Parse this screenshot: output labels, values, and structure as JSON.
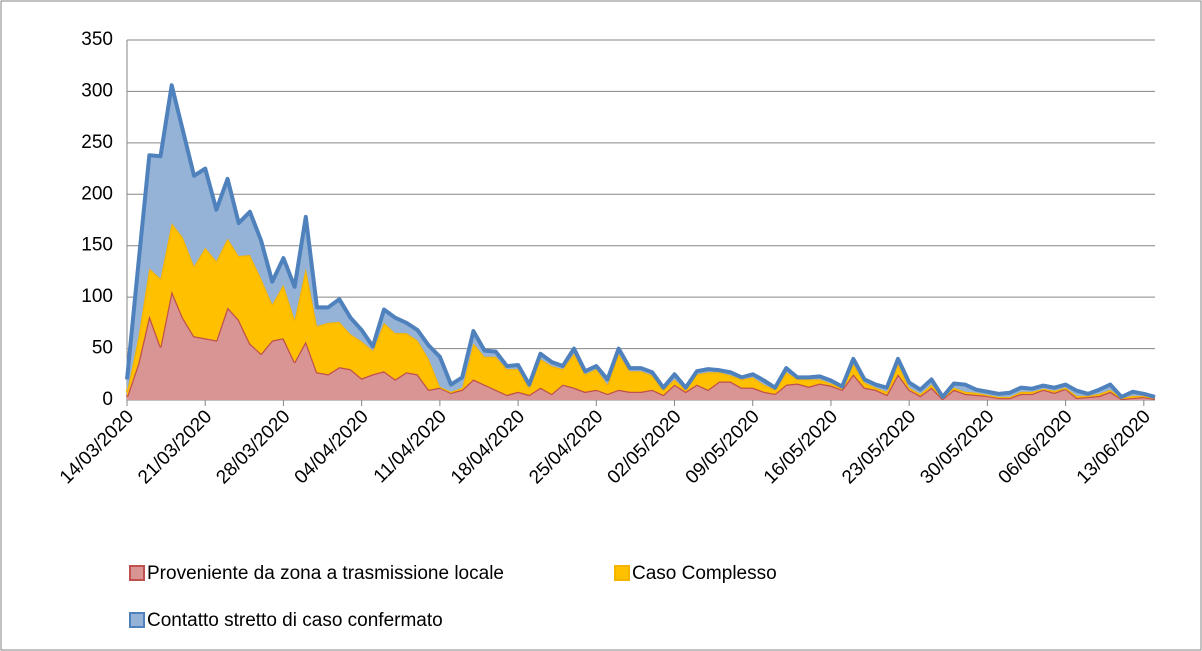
{
  "chart_data": {
    "type": "stacked_area",
    "categories": [
      "14/03/2020",
      null,
      null,
      null,
      null,
      null,
      null,
      "21/03/2020",
      null,
      null,
      null,
      null,
      null,
      null,
      "28/03/2020",
      null,
      null,
      null,
      null,
      null,
      null,
      "04/04/2020",
      null,
      null,
      null,
      null,
      null,
      null,
      "11/04/2020",
      null,
      null,
      null,
      null,
      null,
      null,
      "18/04/2020",
      null,
      null,
      null,
      null,
      null,
      null,
      "25/04/2020",
      null,
      null,
      null,
      null,
      null,
      null,
      "02/05/2020",
      null,
      null,
      null,
      null,
      null,
      null,
      "09/05/2020",
      null,
      null,
      null,
      null,
      null,
      null,
      "16/05/2020",
      null,
      null,
      null,
      null,
      null,
      null,
      "23/05/2020",
      null,
      null,
      null,
      null,
      null,
      null,
      "30/05/2020",
      null,
      null,
      null,
      null,
      null,
      null,
      "06/06/2020",
      null,
      null,
      null,
      null,
      null,
      null,
      "13/06/2020",
      null
    ],
    "series": [
      {
        "name": "Proveniente da zona a trasmissione locale",
        "color": "#d99594",
        "line_color": "#c0504d",
        "values": [
          3,
          35,
          82,
          52,
          106,
          80,
          62,
          60,
          58,
          90,
          78,
          55,
          45,
          58,
          60,
          37,
          57,
          27,
          25,
          32,
          30,
          21,
          25,
          28,
          20,
          27,
          25,
          10,
          12,
          7,
          10,
          20,
          15,
          10,
          5,
          8,
          5,
          12,
          6,
          15,
          12,
          8,
          10,
          6,
          10,
          8,
          8,
          10,
          5,
          15,
          8,
          15,
          10,
          18,
          18,
          12,
          12,
          8,
          6,
          15,
          16,
          13,
          16,
          14,
          10,
          25,
          12,
          10,
          5,
          25,
          10,
          4,
          12,
          1,
          10,
          6,
          5,
          4,
          2,
          2,
          6,
          6,
          10,
          7,
          11,
          2,
          3,
          4,
          8,
          1,
          2,
          3,
          1
        ]
      },
      {
        "name": "Caso Complesso",
        "color": "#ffc000",
        "line_color": "#f5b400",
        "values": [
          5,
          25,
          46,
          66,
          66,
          78,
          68,
          88,
          77,
          67,
          62,
          86,
          73,
          35,
          52,
          41,
          71,
          45,
          50,
          44,
          34,
          36,
          23,
          47,
          45,
          38,
          33,
          30,
          1,
          1,
          2,
          35,
          27,
          32,
          25,
          22,
          7,
          28,
          27,
          15,
          33,
          17,
          20,
          9,
          35,
          20,
          20,
          14,
          5,
          5,
          2,
          10,
          17,
          9,
          6,
          8,
          10,
          7,
          4,
          12,
          4,
          7,
          4,
          2,
          2,
          10,
          5,
          2,
          3,
          10,
          2,
          2,
          3,
          1,
          2,
          2,
          2,
          1,
          1,
          1,
          2,
          2,
          1,
          2,
          1,
          2,
          1,
          2,
          2,
          1,
          2,
          1,
          1
        ]
      },
      {
        "name": "Contatto stretto di caso confermato",
        "color": "#95b3d7",
        "line_color": "#4f81bd",
        "values": [
          12,
          70,
          110,
          119,
          134,
          104,
          88,
          77,
          50,
          58,
          32,
          42,
          37,
          22,
          26,
          32,
          50,
          18,
          15,
          22,
          16,
          11,
          4,
          13,
          15,
          10,
          10,
          13,
          29,
          7,
          10,
          12,
          6,
          5,
          3,
          4,
          3,
          5,
          4,
          3,
          5,
          3,
          3,
          5,
          5,
          3,
          3,
          3,
          2,
          5,
          2,
          3,
          3,
          2,
          3,
          2,
          3,
          4,
          2,
          4,
          2,
          2,
          3,
          3,
          1,
          5,
          3,
          3,
          4,
          5,
          5,
          4,
          5,
          1,
          4,
          7,
          3,
          3,
          3,
          4,
          4,
          3,
          3,
          3,
          3,
          5,
          2,
          4,
          5,
          1,
          4,
          2,
          1
        ]
      }
    ],
    "ylim": [
      0,
      350
    ],
    "yticks": [
      0,
      50,
      100,
      150,
      200,
      250,
      300,
      350
    ],
    "grid": true,
    "legend": "bottom"
  }
}
